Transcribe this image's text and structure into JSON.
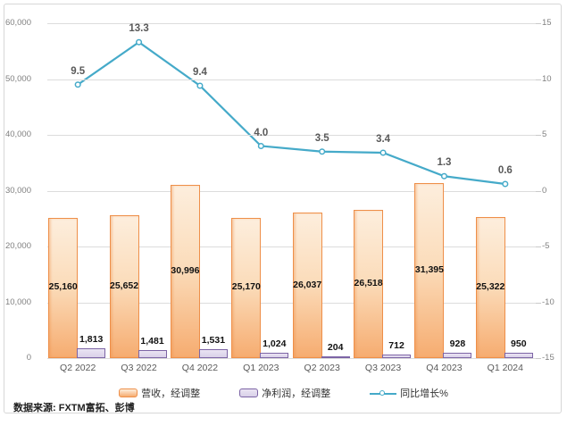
{
  "source_note": "数据来源: FXTM富拓、彭博",
  "legend": {
    "items": [
      {
        "label": "营收，经调整",
        "swatch": "orange-bar"
      },
      {
        "label": "净利润，经调整",
        "swatch": "purple-bar"
      },
      {
        "label": "同比增长%",
        "swatch": "teal-line-marker"
      }
    ]
  },
  "colors": {
    "revenue_border": "#ee8f49",
    "revenue_fill_light": "#fdeedd",
    "revenue_fill_dark": "#f6ac70",
    "profit_border": "#7c64a5",
    "profit_fill": "#d9d0e8",
    "growth_line": "#45aac9",
    "gridline": "#dcdcdc",
    "axis_text": "#808080",
    "line_label_text": "#595959",
    "bar_label_text": "#111111"
  },
  "chart_data": {
    "type": "bar+line combo",
    "categories": [
      "Q2 2022",
      "Q3 2022",
      "Q4 2022",
      "Q1 2023",
      "Q2 2023",
      "Q3 2023",
      "Q4 2023",
      "Q1 2024"
    ],
    "series": [
      {
        "name": "营收，经调整",
        "type": "bar",
        "axis": "left",
        "values": [
          25160,
          25652,
          30996,
          25170,
          26037,
          26518,
          31395,
          25322
        ],
        "labels": [
          "25,160",
          "25,652",
          "30,996",
          "25,170",
          "26,037",
          "26,518",
          "31,395",
          "25,322"
        ]
      },
      {
        "name": "净利润，经调整",
        "type": "bar",
        "axis": "left",
        "values": [
          1813,
          1481,
          1531,
          1024,
          204,
          712,
          928,
          950
        ],
        "labels": [
          "1,813",
          "1,481",
          "1,531",
          "1,024",
          "204",
          "712",
          "928",
          "950"
        ]
      },
      {
        "name": "同比增长%",
        "type": "line",
        "axis": "right",
        "values": [
          9.5,
          13.3,
          9.4,
          4.0,
          3.5,
          3.4,
          1.3,
          0.6
        ],
        "labels": [
          "9.5",
          "13.3",
          "9.4",
          "4.0",
          "3.5",
          "3.4",
          "1.3",
          "0.6"
        ]
      }
    ],
    "left_axis": {
      "min": 0,
      "max": 60000,
      "tick_labels": [
        "60,000",
        "50,000",
        "40,000",
        "30,000",
        "20,000",
        "10,000",
        "0"
      ]
    },
    "right_axis": {
      "min": -15,
      "max": 15,
      "tick_labels": [
        "15",
        "10",
        "5",
        "0",
        "-5",
        "-10",
        "-15"
      ]
    },
    "grid": true,
    "legend_position": "bottom"
  }
}
